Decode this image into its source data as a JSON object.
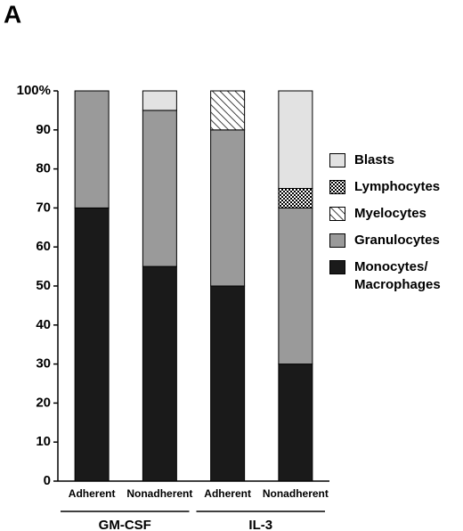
{
  "panel_label": "A",
  "chart_data": {
    "type": "stacked_bar",
    "categories": [
      "Adherent",
      "Nonadherent",
      "Adherent",
      "Nonadherent"
    ],
    "groups": [
      "GM-CSF",
      "IL-3"
    ],
    "series": [
      {
        "name": "Monocytes/ Macrophages",
        "color": "#1a1a1a",
        "values": [
          70,
          55,
          50,
          30
        ]
      },
      {
        "name": "Granulocytes",
        "color": "#9a9a9a",
        "values": [
          30,
          40,
          40,
          40
        ]
      },
      {
        "name": "Myelocytes",
        "color": "#ffffff",
        "pattern": "hatch",
        "values": [
          0,
          0,
          10,
          0
        ]
      },
      {
        "name": "Lymphocytes",
        "color": "#ffffff",
        "pattern": "crosshatch",
        "values": [
          0,
          0,
          0,
          5
        ]
      },
      {
        "name": "Blasts",
        "color": "#e2e2e2",
        "values": [
          0,
          5,
          0,
          25
        ]
      }
    ],
    "ylim": [
      0,
      100
    ],
    "yticks": [
      0,
      10,
      20,
      30,
      40,
      50,
      60,
      70,
      80,
      90,
      {
        "value": 100,
        "label": "100%"
      }
    ],
    "legend": "right"
  }
}
